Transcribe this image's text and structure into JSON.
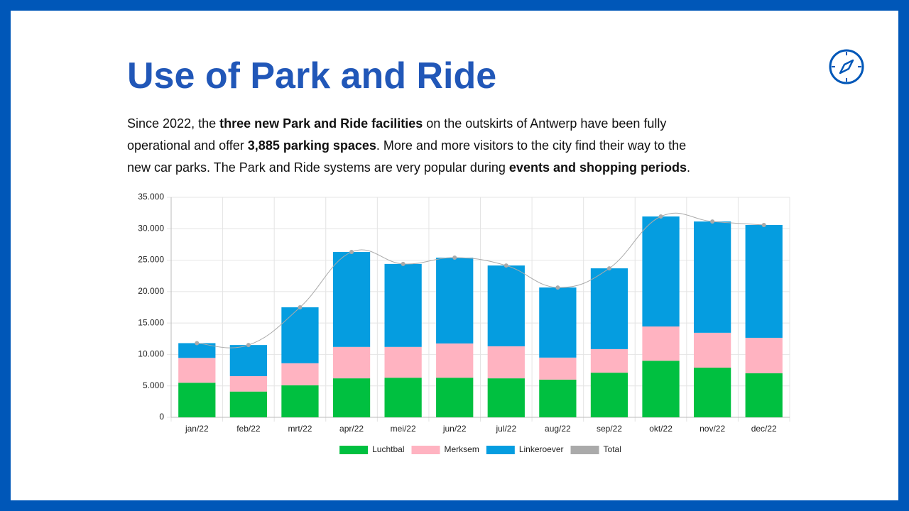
{
  "header": {
    "title": "Use of Park and Ride"
  },
  "description": {
    "lines": [
      [
        {
          "text": "Since 2022, the ",
          "bold": false
        },
        {
          "text": "three new Park and Ride facilities",
          "bold": true
        },
        {
          "text": " on the outskirts of Antwerp have been fully",
          "bold": false
        }
      ],
      [
        {
          "text": "operational and offer ",
          "bold": false
        },
        {
          "text": "3,885 parking spaces",
          "bold": true
        },
        {
          "text": ". More and more visitors to the city find their way to the",
          "bold": false
        }
      ],
      [
        {
          "text": "new car parks. The Park and Ride systems are very popular during ",
          "bold": false
        },
        {
          "text": "events and shopping periods",
          "bold": true
        },
        {
          "text": ".",
          "bold": false
        }
      ]
    ]
  },
  "chart_data": {
    "type": "bar",
    "stacked": true,
    "grid": true,
    "legend": "bottom",
    "categories": [
      "jan/22",
      "feb/22",
      "mrt/22",
      "apr/22",
      "mei/22",
      "jun/22",
      "jul/22",
      "aug/22",
      "sep/22",
      "okt/22",
      "nov/22",
      "dec/22"
    ],
    "series": [
      {
        "name": "Luchtbal",
        "color": "#00c040",
        "values": [
          5500,
          4100,
          5100,
          6200,
          6300,
          6300,
          6200,
          6000,
          7100,
          9000,
          7900,
          7000
        ]
      },
      {
        "name": "Merksem",
        "color": "#ffb3c1",
        "values": [
          3950,
          2450,
          3500,
          5000,
          4900,
          5450,
          5100,
          3500,
          3750,
          5450,
          5550,
          5650
        ]
      },
      {
        "name": "Linkeroever",
        "color": "#059de0",
        "values": [
          2350,
          4950,
          8900,
          15100,
          13200,
          13650,
          12850,
          11150,
          12850,
          17500,
          17700,
          17950
        ]
      },
      {
        "name": "Total",
        "color": "#aaaaaa",
        "type": "line",
        "values": [
          11800,
          11500,
          17500,
          26300,
          24400,
          25400,
          24150,
          20650,
          23700,
          31950,
          31150,
          30600
        ]
      }
    ],
    "ylim": [
      0,
      35000
    ],
    "yticks": [
      0,
      {
        "value": 5000,
        "label": "5.000"
      },
      {
        "value": 10000,
        "label": "10.000"
      },
      {
        "value": 15000,
        "label": "15.000"
      },
      {
        "value": 20000,
        "label": "20.000"
      },
      {
        "value": 25000,
        "label": "25.000"
      },
      {
        "value": 30000,
        "label": "30.000"
      },
      {
        "value": 35000,
        "label": "35.000"
      }
    ]
  }
}
